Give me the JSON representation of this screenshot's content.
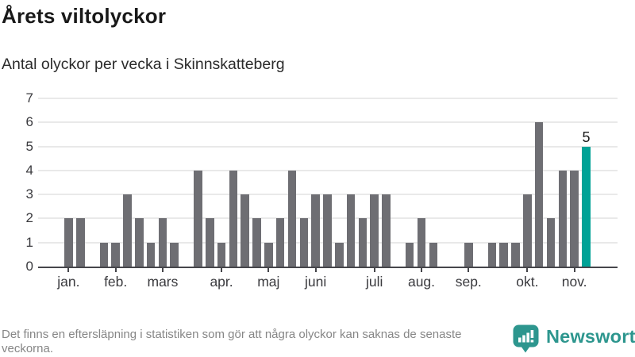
{
  "header": {
    "title": "Årets viltolyckor",
    "subtitle": "Antal olyckor per vecka i Skinnskatteberg"
  },
  "chart_data": {
    "type": "bar",
    "x_unit": "vecka (week of year)",
    "values": [
      2,
      2,
      0,
      1,
      1,
      3,
      2,
      1,
      2,
      1,
      0,
      4,
      2,
      1,
      4,
      3,
      2,
      1,
      2,
      4,
      2,
      3,
      3,
      1,
      3,
      2,
      3,
      3,
      0,
      1,
      2,
      1,
      0,
      0,
      1,
      0,
      1,
      1,
      1,
      3,
      6,
      2,
      4,
      4,
      5
    ],
    "month_ticks": [
      {
        "label": "jan.",
        "index": 0
      },
      {
        "label": "feb.",
        "index": 4
      },
      {
        "label": "mars",
        "index": 8
      },
      {
        "label": "apr.",
        "index": 13
      },
      {
        "label": "maj",
        "index": 17
      },
      {
        "label": "juni",
        "index": 21
      },
      {
        "label": "juli",
        "index": 26
      },
      {
        "label": "aug.",
        "index": 30
      },
      {
        "label": "sep.",
        "index": 34
      },
      {
        "label": "okt.",
        "index": 39
      },
      {
        "label": "nov.",
        "index": 43
      }
    ],
    "y_ticks": [
      0,
      1,
      2,
      3,
      4,
      5,
      6,
      7
    ],
    "ylim": [
      0,
      7
    ],
    "grid": "on",
    "legend": "none",
    "highlight_index": 44,
    "highlight_label": "5",
    "colors": {
      "bar": "#6e6e73",
      "highlight": "#00a296",
      "grid": "#e9e9e9",
      "axis": "#46464b"
    }
  },
  "footer": {
    "note": "Det finns en eftersläpning i statistiken som gör att några olyckor kan saknas de senaste veckorna.",
    "brand": "Newsworthy",
    "brand_color": "#2d968e"
  }
}
